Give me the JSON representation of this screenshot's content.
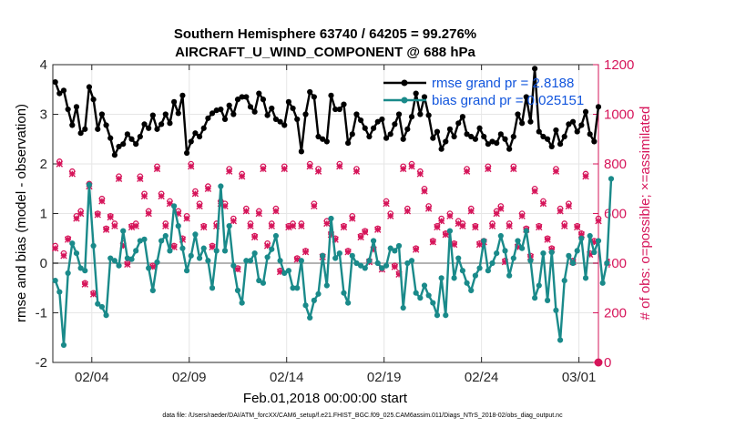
{
  "chart_data": {
    "type": "line",
    "title": "Southern Hemisphere 63740 / 64205 = 99.276%",
    "subtitle": "AIRCRAFT_U_WIND_COMPONENT @ 688 hPa",
    "xlabel": "Feb.01,2018 00:00:00 start",
    "ylabel_left": "rmse and bias (model - observation)",
    "ylabel_right": "# of obs: o=possible; ×=assimilated",
    "footer": "data file: /Users/raeder/DAI/ATM_forcXX/CAM6_setup/f.e21.FHIST_BGC.f09_025.CAM6assim.011/Diags_NTrS_2018-02/obs_diag_output.nc",
    "xlim": [
      1,
      29
    ],
    "ylim_left": [
      -2,
      4
    ],
    "ylim_right": [
      0,
      1200
    ],
    "x_ticks": [
      3,
      8,
      13,
      18,
      23,
      28
    ],
    "x_tick_labels": [
      "02/04",
      "02/09",
      "02/14",
      "02/19",
      "02/24",
      "03/01"
    ],
    "y_ticks_left": [
      "-2",
      "-1",
      "0",
      "1",
      "2",
      "3",
      "4"
    ],
    "y_ticks_right": [
      "0",
      "200",
      "400",
      "600",
      "800",
      "1000",
      "1200"
    ],
    "colors": {
      "rmse": "#000000",
      "bias": "#1a8a8a",
      "obs": "#d6155a",
      "legend_text": "#1155dd",
      "zero_line": "#b4b4b4"
    },
    "series": [
      {
        "name": "rmse grand pr = 2.8188",
        "axis": "left",
        "values": [
          3.65,
          3.42,
          3.48,
          3.1,
          2.78,
          3.15,
          2.62,
          2.7,
          3.55,
          3.3,
          2.7,
          3.0,
          2.78,
          2.52,
          2.18,
          2.35,
          2.4,
          2.6,
          2.5,
          2.4,
          2.55,
          2.8,
          2.72,
          2.98,
          2.7,
          2.8,
          3.0,
          2.82,
          3.25,
          3.02,
          3.38,
          2.22,
          2.45,
          2.62,
          2.55,
          2.72,
          2.92,
          3.02,
          3.08,
          3.1,
          2.9,
          3.18,
          3.0,
          3.3,
          3.35,
          3.35,
          3.15,
          3.05,
          3.42,
          3.3,
          2.98,
          3.12,
          2.9,
          2.85,
          2.78,
          3.25,
          3.12,
          2.9,
          2.25,
          3.0,
          3.45,
          3.35,
          2.55,
          2.5,
          2.45,
          3.38,
          3.1,
          3.1,
          3.2,
          2.42,
          2.6,
          3.0,
          2.88,
          2.72,
          2.55,
          2.72,
          2.85,
          2.9,
          2.52,
          2.6,
          2.8,
          3.0,
          2.5,
          2.7,
          2.95,
          3.42,
          3.0,
          3.35,
          2.98,
          2.52,
          2.65,
          2.3,
          2.45,
          2.7,
          2.55,
          2.82,
          2.95,
          2.6,
          2.55,
          2.5,
          2.72,
          2.55,
          2.4,
          2.45,
          2.42,
          2.6,
          2.5,
          2.3,
          2.55,
          3.0,
          2.82,
          3.35,
          2.85,
          3.92,
          2.65,
          2.55,
          2.5,
          2.35,
          2.68,
          2.4,
          2.55,
          2.8,
          2.85,
          2.65,
          2.78,
          3.05,
          2.6,
          2.45,
          3.15
        ]
      },
      {
        "name": "bias grand pr = 0.025151",
        "axis": "left",
        "values": [
          -0.35,
          -0.58,
          -1.65,
          -0.2,
          0.4,
          0.2,
          -0.1,
          -0.15,
          1.58,
          0.35,
          -0.82,
          -0.88,
          -1.05,
          0.1,
          0.05,
          -0.05,
          0.65,
          0.1,
          0.08,
          0.25,
          0.45,
          0.48,
          -0.1,
          -0.55,
          0.02,
          0.45,
          0.55,
          0.25,
          1.15,
          0.75,
          0.3,
          -0.15,
          0.15,
          0.58,
          0.1,
          0.3,
          0.05,
          -0.5,
          0.25,
          1.55,
          0.25,
          0.75,
          -0.05,
          -0.55,
          -0.8,
          0.05,
          0.05,
          0.2,
          -0.35,
          -0.4,
          0.12,
          0.28,
          0.55,
          0.05,
          -0.2,
          -0.15,
          -0.5,
          -0.5,
          0.05,
          -0.85,
          -1.1,
          -0.75,
          -0.62,
          0.15,
          -0.45,
          0.9,
          0.1,
          0.2,
          -0.6,
          -0.8,
          0.15,
          0.0,
          -0.05,
          -0.1,
          0.05,
          0.45,
          0.0,
          -0.1,
          -0.05,
          0.3,
          0.25,
          0.35,
          -0.9,
          0.0,
          0.05,
          -0.6,
          -0.7,
          -0.45,
          -0.65,
          -0.8,
          -1.05,
          -0.3,
          -1.05,
          0.65,
          -0.3,
          0.1,
          -0.15,
          -0.4,
          -0.55,
          -0.25,
          -0.1,
          0.45,
          -0.15,
          0.0,
          0.2,
          0.55,
          0.25,
          -0.25,
          0.1,
          0.45,
          0.3,
          0.65,
          0.05,
          -0.7,
          -0.45,
          0.2,
          -0.75,
          0.22,
          -0.95,
          -1.55,
          -0.35,
          0.15,
          0.0,
          0.25,
          0.5,
          -0.3,
          0.55,
          0.22,
          0.45,
          -0.4,
          0.0,
          1.7
        ]
      }
    ],
    "obs_possible": [
      470,
      810,
      440,
      500,
      770,
      590,
      610,
      320,
      720,
      280,
      600,
      660,
      540,
      590,
      560,
      750,
      480,
      400,
      550,
      560,
      750,
      680,
      610,
      390,
      790,
      680,
      560,
      650,
      470,
      610,
      500,
      590,
      800,
      690,
      640,
      550,
      710,
      470,
      560,
      650,
      640,
      780,
      580,
      380,
      760,
      620,
      560,
      510,
      610,
      790,
      480,
      560,
      620,
      370,
      790,
      550,
      560,
      420,
      560,
      450,
      800,
      640,
      780,
      430,
      570,
      520,
      500,
      800,
      550,
      450,
      590,
      780,
      510,
      530,
      410,
      460,
      540,
      380,
      650,
      600,
      390,
      360,
      790,
      620,
      800,
      460,
      770,
      700,
      630,
      490,
      550,
      580,
      520,
      600,
      480,
      570,
      560,
      780,
      620,
      550,
      480,
      490,
      790,
      560,
      610,
      630,
      410,
      560,
      790,
      470,
      600,
      540,
      430,
      700,
      550,
      650,
      500,
      460,
      780,
      620,
      560,
      640,
      410,
      550,
      520,
      760,
      440,
      490,
      580
    ],
    "obs_assimilated": [
      460,
      800,
      430,
      495,
      760,
      580,
      600,
      315,
      710,
      275,
      595,
      650,
      535,
      585,
      550,
      740,
      470,
      395,
      545,
      550,
      740,
      670,
      600,
      385,
      780,
      670,
      550,
      640,
      465,
      600,
      495,
      580,
      790,
      680,
      630,
      545,
      700,
      465,
      550,
      640,
      630,
      770,
      570,
      375,
      750,
      610,
      550,
      505,
      600,
      780,
      470,
      550,
      610,
      365,
      780,
      545,
      550,
      415,
      550,
      445,
      790,
      630,
      770,
      425,
      560,
      515,
      495,
      790,
      545,
      445,
      580,
      770,
      505,
      525,
      405,
      455,
      535,
      375,
      640,
      590,
      385,
      355,
      780,
      610,
      790,
      455,
      760,
      690,
      620,
      485,
      545,
      570,
      515,
      590,
      475,
      560,
      550,
      770,
      610,
      545,
      475,
      485,
      780,
      550,
      600,
      620,
      405,
      550,
      780,
      465,
      590,
      535,
      425,
      690,
      545,
      640,
      495,
      455,
      770,
      610,
      550,
      630,
      405,
      545,
      515,
      750,
      435,
      485,
      570
    ],
    "final_obs": 0
  }
}
